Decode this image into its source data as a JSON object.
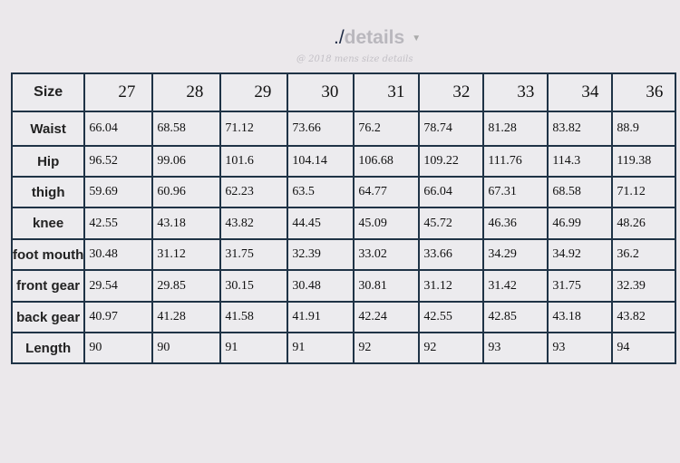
{
  "header": {
    "title_prefix": "./",
    "title": "details",
    "subtitle": "@ 2018 mens size details"
  },
  "table": {
    "size_label": "Size",
    "sizes": [
      "27",
      "28",
      "29",
      "30",
      "31",
      "32",
      "33",
      "34",
      "36"
    ],
    "rows": [
      {
        "label": "Waist",
        "values": [
          "66.04",
          "68.58",
          "71.12",
          "73.66",
          "76.2",
          "78.74",
          "81.28",
          "83.82",
          "88.9"
        ]
      },
      {
        "label": "Hip",
        "values": [
          "96.52",
          "99.06",
          "101.6",
          "104.14",
          "106.68",
          "109.22",
          "111.76",
          "114.3",
          "119.38"
        ]
      },
      {
        "label": "thigh",
        "values": [
          "59.69",
          "60.96",
          "62.23",
          "63.5",
          "64.77",
          "66.04",
          "67.31",
          "68.58",
          "71.12"
        ]
      },
      {
        "label": "knee",
        "values": [
          "42.55",
          "43.18",
          "43.82",
          "44.45",
          "45.09",
          "45.72",
          "46.36",
          "46.99",
          "48.26"
        ]
      },
      {
        "label": "foot mouth",
        "values": [
          "30.48",
          "31.12",
          "31.75",
          "32.39",
          "33.02",
          "33.66",
          "34.29",
          "34.92",
          "36.2"
        ]
      },
      {
        "label": "front gear",
        "values": [
          "29.54",
          "29.85",
          "30.15",
          "30.48",
          "30.81",
          "31.12",
          "31.42",
          "31.75",
          "32.39"
        ]
      },
      {
        "label": "back gear",
        "values": [
          "40.97",
          "41.28",
          "41.58",
          "41.91",
          "42.24",
          "42.55",
          "42.85",
          "43.18",
          "43.82"
        ]
      },
      {
        "label": "Length",
        "values": [
          "90",
          "90",
          "91",
          "91",
          "92",
          "92",
          "93",
          "93",
          "94"
        ]
      }
    ]
  }
}
